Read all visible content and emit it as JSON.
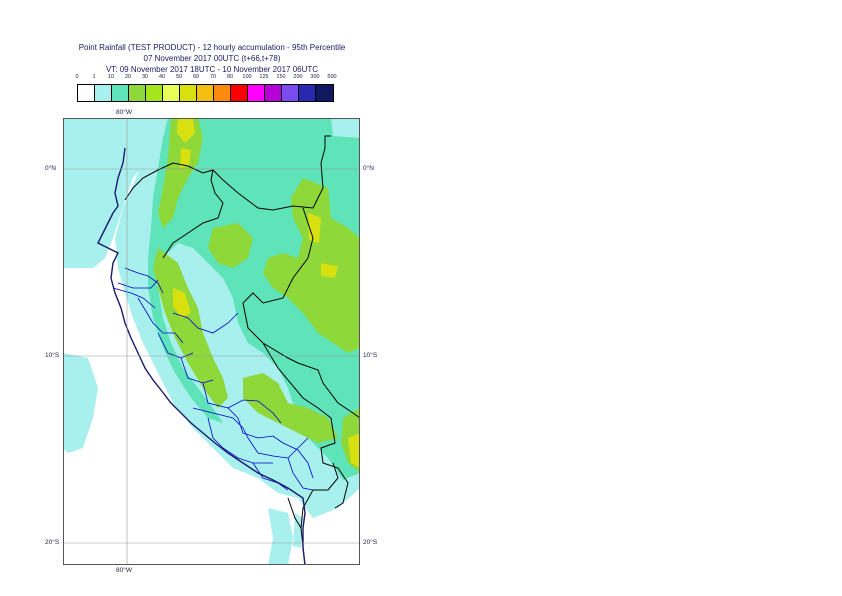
{
  "title": {
    "line1": "Point Rainfall (TEST PRODUCT) - 12 hourly accumulation - 95th Percentile",
    "line2": "07 November 2017 00UTC (t+66,t+78)",
    "line3": "VT: 09 November 2017 18UTC - 10 November 2017 06UTC"
  },
  "legend": {
    "levels": [
      "0",
      "1",
      "10",
      "20",
      "30",
      "40",
      "50",
      "60",
      "70",
      "80",
      "100",
      "125",
      "150",
      "200",
      "300",
      "500"
    ],
    "colors": [
      "#ffffff",
      "#a8f0ee",
      "#5fe3b8",
      "#8fd83a",
      "#a4e61c",
      "#e8ff5a",
      "#d8e010",
      "#f2bf10",
      "#ff8a10",
      "#ff0000",
      "#ff00ff",
      "#b600d8",
      "#7a4cf0",
      "#2828b0",
      "#101860"
    ]
  },
  "axes": {
    "lon_top": "80°W",
    "lon_bottom": "80°W",
    "lat_labels": [
      "0°N",
      "10°S",
      "20°S"
    ]
  },
  "colors": {
    "sea": "#ffffff",
    "light_rain": "#a8f0ee",
    "moderate_rain": "#5fe3b8",
    "heavy_rain": "#8fd83a",
    "very_heavy_rain": "#d8e010",
    "coastline": "#1a1a6e",
    "borders": "#000000",
    "regions": "#0000cc",
    "grid": "#999999"
  }
}
